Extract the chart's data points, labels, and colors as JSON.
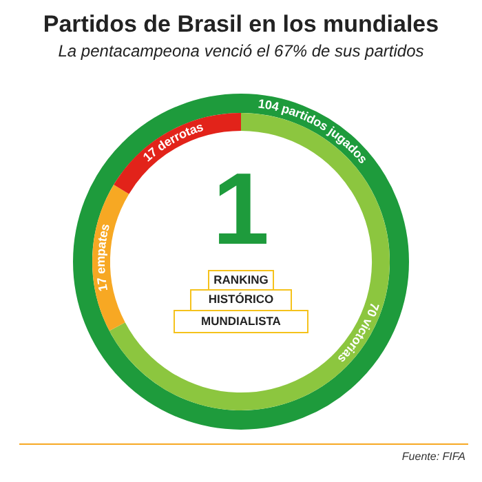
{
  "chart_data": {
    "type": "donut",
    "title": "Partidos de Brasil en los mundiales",
    "subtitle": "La pentacampeona venció el 67% de sus partidos",
    "categories": [
      "victorias",
      "empates",
      "derrotas"
    ],
    "values": [
      70,
      17,
      17
    ],
    "colors": [
      "#8cc63f",
      "#f7a823",
      "#e2231a"
    ],
    "data_labels": true,
    "legend": false,
    "annotations": [
      "104 partidos jugados",
      "1",
      "RANKING HISTÓRICO MUNDIALISTA",
      "Fuente: FIFA"
    ]
  }
}
